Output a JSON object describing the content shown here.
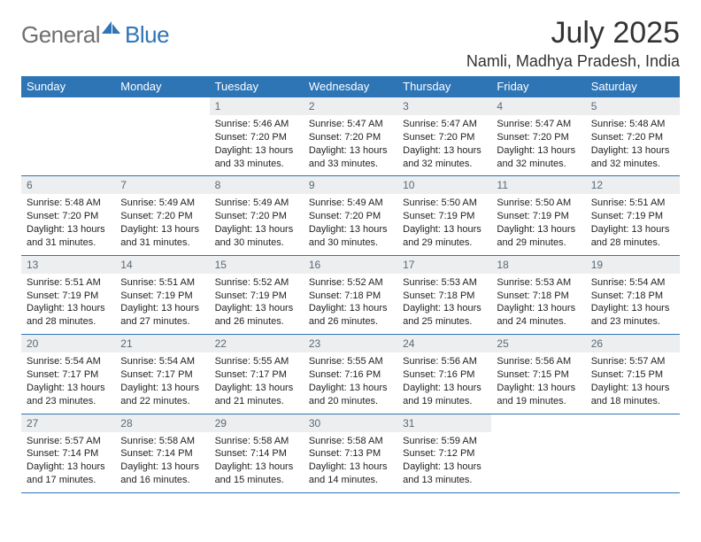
{
  "logo": {
    "text1": "General",
    "text2": "Blue"
  },
  "title": "July 2025",
  "location": "Namli, Madhya Pradesh, India",
  "colors": {
    "header_bg": "#2e75b6",
    "header_fg": "#ffffff",
    "daynum_bg": "#eceeef",
    "daynum_fg": "#5a6a78",
    "border": "#2e75b6",
    "logo_gray": "#6f6f6f",
    "logo_blue": "#2e75b6"
  },
  "weekdays": [
    "Sunday",
    "Monday",
    "Tuesday",
    "Wednesday",
    "Thursday",
    "Friday",
    "Saturday"
  ],
  "first_weekday_index": 2,
  "days": [
    {
      "n": 1,
      "sunrise": "5:46 AM",
      "sunset": "7:20 PM",
      "daylight": "13 hours and 33 minutes."
    },
    {
      "n": 2,
      "sunrise": "5:47 AM",
      "sunset": "7:20 PM",
      "daylight": "13 hours and 33 minutes."
    },
    {
      "n": 3,
      "sunrise": "5:47 AM",
      "sunset": "7:20 PM",
      "daylight": "13 hours and 32 minutes."
    },
    {
      "n": 4,
      "sunrise": "5:47 AM",
      "sunset": "7:20 PM",
      "daylight": "13 hours and 32 minutes."
    },
    {
      "n": 5,
      "sunrise": "5:48 AM",
      "sunset": "7:20 PM",
      "daylight": "13 hours and 32 minutes."
    },
    {
      "n": 6,
      "sunrise": "5:48 AM",
      "sunset": "7:20 PM",
      "daylight": "13 hours and 31 minutes."
    },
    {
      "n": 7,
      "sunrise": "5:49 AM",
      "sunset": "7:20 PM",
      "daylight": "13 hours and 31 minutes."
    },
    {
      "n": 8,
      "sunrise": "5:49 AM",
      "sunset": "7:20 PM",
      "daylight": "13 hours and 30 minutes."
    },
    {
      "n": 9,
      "sunrise": "5:49 AM",
      "sunset": "7:20 PM",
      "daylight": "13 hours and 30 minutes."
    },
    {
      "n": 10,
      "sunrise": "5:50 AM",
      "sunset": "7:19 PM",
      "daylight": "13 hours and 29 minutes."
    },
    {
      "n": 11,
      "sunrise": "5:50 AM",
      "sunset": "7:19 PM",
      "daylight": "13 hours and 29 minutes."
    },
    {
      "n": 12,
      "sunrise": "5:51 AM",
      "sunset": "7:19 PM",
      "daylight": "13 hours and 28 minutes."
    },
    {
      "n": 13,
      "sunrise": "5:51 AM",
      "sunset": "7:19 PM",
      "daylight": "13 hours and 28 minutes."
    },
    {
      "n": 14,
      "sunrise": "5:51 AM",
      "sunset": "7:19 PM",
      "daylight": "13 hours and 27 minutes."
    },
    {
      "n": 15,
      "sunrise": "5:52 AM",
      "sunset": "7:19 PM",
      "daylight": "13 hours and 26 minutes."
    },
    {
      "n": 16,
      "sunrise": "5:52 AM",
      "sunset": "7:18 PM",
      "daylight": "13 hours and 26 minutes."
    },
    {
      "n": 17,
      "sunrise": "5:53 AM",
      "sunset": "7:18 PM",
      "daylight": "13 hours and 25 minutes."
    },
    {
      "n": 18,
      "sunrise": "5:53 AM",
      "sunset": "7:18 PM",
      "daylight": "13 hours and 24 minutes."
    },
    {
      "n": 19,
      "sunrise": "5:54 AM",
      "sunset": "7:18 PM",
      "daylight": "13 hours and 23 minutes."
    },
    {
      "n": 20,
      "sunrise": "5:54 AM",
      "sunset": "7:17 PM",
      "daylight": "13 hours and 23 minutes."
    },
    {
      "n": 21,
      "sunrise": "5:54 AM",
      "sunset": "7:17 PM",
      "daylight": "13 hours and 22 minutes."
    },
    {
      "n": 22,
      "sunrise": "5:55 AM",
      "sunset": "7:17 PM",
      "daylight": "13 hours and 21 minutes."
    },
    {
      "n": 23,
      "sunrise": "5:55 AM",
      "sunset": "7:16 PM",
      "daylight": "13 hours and 20 minutes."
    },
    {
      "n": 24,
      "sunrise": "5:56 AM",
      "sunset": "7:16 PM",
      "daylight": "13 hours and 19 minutes."
    },
    {
      "n": 25,
      "sunrise": "5:56 AM",
      "sunset": "7:15 PM",
      "daylight": "13 hours and 19 minutes."
    },
    {
      "n": 26,
      "sunrise": "5:57 AM",
      "sunset": "7:15 PM",
      "daylight": "13 hours and 18 minutes."
    },
    {
      "n": 27,
      "sunrise": "5:57 AM",
      "sunset": "7:14 PM",
      "daylight": "13 hours and 17 minutes."
    },
    {
      "n": 28,
      "sunrise": "5:58 AM",
      "sunset": "7:14 PM",
      "daylight": "13 hours and 16 minutes."
    },
    {
      "n": 29,
      "sunrise": "5:58 AM",
      "sunset": "7:14 PM",
      "daylight": "13 hours and 15 minutes."
    },
    {
      "n": 30,
      "sunrise": "5:58 AM",
      "sunset": "7:13 PM",
      "daylight": "13 hours and 14 minutes."
    },
    {
      "n": 31,
      "sunrise": "5:59 AM",
      "sunset": "7:12 PM",
      "daylight": "13 hours and 13 minutes."
    }
  ],
  "labels": {
    "sunrise": "Sunrise:",
    "sunset": "Sunset:",
    "daylight": "Daylight:"
  }
}
